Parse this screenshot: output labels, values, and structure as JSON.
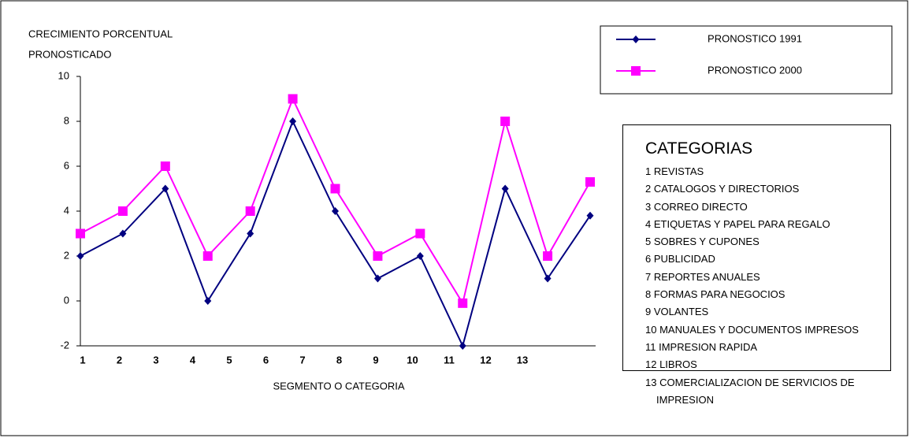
{
  "chart_data": {
    "type": "line",
    "y_label": [
      "CRECIMIENTO PORCENTUAL",
      "PRONOSTICADO"
    ],
    "x_label": "SEGMENTO O CATEGORIA",
    "categories": [
      "1",
      "2",
      "3",
      "4",
      "5",
      "6",
      "7",
      "8",
      "9",
      "10",
      "11",
      "12",
      "13"
    ],
    "series": [
      {
        "name": "PRONOSTICO 1991",
        "color": "#000080",
        "marker": "diamond",
        "values": [
          2,
          3,
          5,
          0,
          3,
          8,
          4,
          1,
          2,
          -2,
          5,
          1,
          3.8
        ]
      },
      {
        "name": "PRONOSTICO 2000",
        "color": "#ff00ff",
        "marker": "square",
        "values": [
          3,
          4,
          6,
          2,
          4,
          9,
          5,
          2,
          3,
          -0.1,
          8,
          2,
          5.3
        ]
      }
    ],
    "ylim": [
      -2,
      10
    ],
    "yticks": [
      -2,
      0,
      2,
      4,
      6,
      8,
      10
    ],
    "category_box": {
      "title": "CATEGORIAS",
      "items": [
        "1 REVISTAS",
        "2 CATALOGOS Y DIRECTORIOS",
        "3 CORREO DIRECTO",
        "4 ETIQUETAS Y PAPEL PARA REGALO",
        "5 SOBRES Y CUPONES",
        "6 PUBLICIDAD",
        "7 REPORTES ANUALES",
        "8 FORMAS PARA NEGOCIOS",
        "9 VOLANTES",
        "10 MANUALES Y DOCUMENTOS IMPRESOS",
        "11 IMPRESION RAPIDA",
        "12 LIBROS",
        "13 COMERCIALIZACION DE SERVICIOS DE IMPRESION"
      ]
    }
  }
}
